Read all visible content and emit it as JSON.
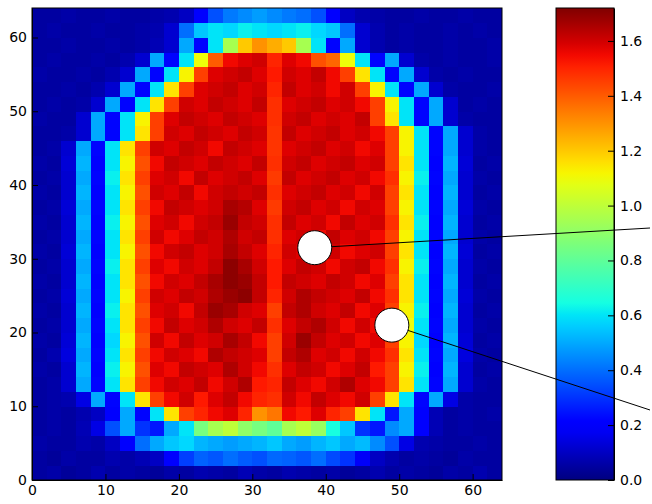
{
  "chart_data": {
    "type": "heatmap",
    "x": [
      1,
      3,
      5,
      7,
      9,
      11,
      13,
      15,
      17,
      19,
      21,
      23,
      25,
      27,
      29,
      31,
      33,
      35,
      37,
      39,
      41,
      43,
      45,
      47,
      49,
      51,
      53,
      55,
      57,
      59,
      61,
      63
    ],
    "y": [
      1,
      3,
      5,
      7,
      9,
      11,
      13,
      15,
      17,
      19,
      21,
      23,
      25,
      27,
      29,
      31,
      33,
      35,
      37,
      39,
      41,
      43,
      45,
      47,
      49,
      51,
      53,
      55,
      57,
      59,
      61,
      63
    ],
    "z": [
      [
        0.05,
        0.06,
        0.04,
        0.05,
        0.07,
        0.05,
        0.06,
        0.05,
        0.04,
        0.06,
        0.05,
        0.07,
        0.06,
        0.05,
        0.08,
        0.06,
        0.05,
        0.07,
        0.06,
        0.05,
        0.06,
        0.04,
        0.05,
        0.07,
        0.05,
        0.06,
        0.05,
        0.04,
        0.06,
        0.05,
        0.07,
        0.05
      ],
      [
        0.05,
        0.04,
        0.06,
        0.05,
        0.05,
        0.07,
        0.06,
        0.08,
        0.1,
        0.2,
        0.32,
        0.38,
        0.36,
        0.4,
        0.37,
        0.35,
        0.39,
        0.38,
        0.36,
        0.4,
        0.34,
        0.3,
        0.18,
        0.1,
        0.07,
        0.05,
        0.06,
        0.05,
        0.04,
        0.06,
        0.05,
        0.05
      ],
      [
        0.06,
        0.05,
        0.05,
        0.07,
        0.06,
        0.1,
        0.2,
        0.4,
        0.5,
        0.55,
        0.58,
        0.52,
        0.5,
        0.48,
        0.5,
        0.52,
        0.55,
        0.5,
        0.48,
        0.52,
        0.55,
        0.5,
        0.53,
        0.45,
        0.35,
        0.15,
        0.07,
        0.06,
        0.05,
        0.05,
        0.06,
        0.05
      ],
      [
        0.05,
        0.06,
        0.05,
        0.08,
        0.15,
        0.35,
        0.5,
        0.3,
        0.25,
        0.5,
        0.6,
        0.85,
        0.95,
        1.0,
        0.9,
        0.85,
        0.8,
        0.95,
        1.0,
        0.92,
        0.65,
        0.55,
        0.3,
        0.25,
        0.45,
        0.5,
        0.2,
        0.08,
        0.05,
        0.06,
        0.05,
        0.05
      ],
      [
        0.05,
        0.06,
        0.05,
        0.07,
        0.1,
        0.2,
        0.5,
        0.22,
        0.6,
        1.15,
        1.45,
        1.5,
        1.55,
        1.58,
        1.5,
        1.3,
        1.35,
        1.55,
        1.52,
        1.58,
        1.5,
        1.45,
        1.15,
        0.6,
        0.25,
        0.5,
        0.2,
        0.08,
        0.05,
        0.06,
        0.05,
        0.06
      ],
      [
        0.05,
        0.06,
        0.07,
        0.15,
        0.5,
        0.22,
        0.6,
        1.15,
        1.45,
        1.55,
        1.6,
        1.52,
        1.58,
        1.62,
        1.55,
        1.5,
        1.48,
        1.6,
        1.55,
        1.62,
        1.58,
        1.55,
        1.6,
        1.45,
        1.15,
        0.6,
        0.22,
        0.5,
        0.15,
        0.06,
        0.05,
        0.05
      ],
      [
        0.05,
        0.06,
        0.12,
        0.5,
        0.22,
        0.6,
        1.15,
        1.45,
        1.55,
        1.6,
        1.58,
        1.62,
        1.55,
        1.6,
        1.65,
        1.52,
        1.5,
        1.62,
        1.58,
        1.55,
        1.6,
        1.65,
        1.58,
        1.55,
        1.45,
        1.15,
        0.6,
        0.22,
        0.5,
        0.12,
        0.06,
        0.05
      ],
      [
        0.06,
        0.05,
        0.12,
        0.52,
        0.2,
        0.62,
        1.12,
        1.42,
        1.58,
        1.55,
        1.62,
        1.6,
        1.58,
        1.65,
        1.6,
        1.55,
        1.48,
        1.58,
        1.62,
        1.6,
        1.55,
        1.58,
        1.62,
        1.52,
        1.45,
        1.12,
        0.62,
        0.2,
        0.52,
        0.12,
        0.05,
        0.06
      ],
      [
        0.05,
        0.07,
        0.14,
        0.5,
        0.22,
        0.6,
        1.15,
        1.45,
        1.55,
        1.6,
        1.58,
        1.55,
        1.65,
        1.62,
        1.6,
        1.58,
        1.45,
        1.62,
        1.65,
        1.58,
        1.6,
        1.55,
        1.6,
        1.55,
        1.48,
        1.15,
        0.6,
        0.22,
        0.5,
        0.14,
        0.06,
        0.05
      ],
      [
        0.06,
        0.05,
        0.13,
        0.52,
        0.2,
        0.58,
        1.12,
        1.42,
        1.6,
        1.55,
        1.62,
        1.58,
        1.6,
        1.66,
        1.62,
        1.55,
        1.45,
        1.6,
        1.68,
        1.62,
        1.58,
        1.6,
        1.55,
        1.58,
        1.45,
        1.12,
        0.58,
        0.2,
        0.52,
        0.13,
        0.05,
        0.06
      ],
      [
        0.05,
        0.06,
        0.12,
        0.5,
        0.22,
        0.6,
        1.15,
        1.45,
        1.55,
        1.62,
        1.58,
        1.6,
        1.65,
        1.6,
        1.58,
        1.62,
        1.48,
        1.58,
        1.62,
        1.65,
        1.6,
        1.55,
        1.6,
        1.55,
        1.42,
        1.1,
        0.6,
        0.22,
        0.5,
        0.12,
        0.06,
        0.05
      ],
      [
        0.06,
        0.05,
        0.12,
        0.52,
        0.2,
        0.62,
        1.15,
        1.42,
        1.58,
        1.6,
        1.55,
        1.62,
        1.68,
        1.66,
        1.6,
        1.58,
        1.45,
        1.62,
        1.65,
        1.6,
        1.58,
        1.62,
        1.55,
        1.58,
        1.45,
        1.12,
        0.62,
        0.2,
        0.52,
        0.12,
        0.05,
        0.06
      ],
      [
        0.05,
        0.06,
        0.13,
        0.5,
        0.22,
        0.6,
        1.12,
        1.45,
        1.6,
        1.58,
        1.62,
        1.6,
        1.65,
        1.68,
        1.7,
        1.62,
        1.5,
        1.6,
        1.65,
        1.62,
        1.6,
        1.58,
        1.62,
        1.55,
        1.48,
        1.15,
        0.6,
        0.22,
        0.5,
        0.13,
        0.06,
        0.05
      ],
      [
        0.06,
        0.05,
        0.12,
        0.52,
        0.2,
        0.6,
        1.15,
        1.42,
        1.55,
        1.6,
        1.58,
        1.62,
        1.66,
        1.7,
        1.68,
        1.62,
        1.52,
        1.62,
        1.6,
        1.58,
        1.62,
        1.6,
        1.55,
        1.58,
        1.45,
        1.15,
        0.6,
        0.2,
        0.52,
        0.12,
        0.05,
        0.06
      ],
      [
        0.05,
        0.06,
        0.12,
        0.5,
        0.22,
        0.62,
        1.15,
        1.45,
        1.58,
        1.55,
        1.6,
        1.58,
        1.62,
        1.7,
        1.66,
        1.6,
        1.52,
        1.58,
        1.62,
        1.6,
        1.55,
        1.6,
        1.62,
        1.55,
        1.48,
        1.12,
        0.62,
        0.22,
        0.5,
        0.12,
        0.06,
        0.05
      ],
      [
        0.06,
        0.05,
        0.13,
        0.52,
        0.2,
        0.6,
        1.12,
        1.42,
        1.55,
        1.6,
        1.62,
        1.58,
        1.6,
        1.66,
        1.62,
        1.58,
        1.5,
        1.6,
        1.58,
        1.62,
        1.6,
        1.55,
        1.58,
        1.6,
        1.45,
        1.15,
        0.6,
        0.2,
        0.52,
        0.13,
        0.05,
        0.06
      ],
      [
        0.05,
        0.06,
        0.12,
        0.5,
        0.22,
        0.6,
        1.15,
        1.45,
        1.6,
        1.55,
        1.58,
        1.62,
        1.6,
        1.65,
        1.6,
        1.62,
        1.48,
        1.58,
        1.6,
        1.55,
        1.62,
        1.58,
        1.6,
        1.55,
        1.45,
        1.12,
        0.6,
        0.22,
        0.5,
        0.12,
        0.06,
        0.05
      ],
      [
        0.06,
        0.05,
        0.12,
        0.52,
        0.2,
        0.62,
        1.12,
        1.42,
        1.58,
        1.6,
        1.55,
        1.6,
        1.62,
        1.68,
        1.62,
        1.6,
        1.48,
        1.62,
        1.58,
        1.6,
        1.55,
        1.62,
        1.58,
        1.6,
        1.48,
        1.15,
        0.62,
        0.2,
        0.52,
        0.12,
        0.05,
        0.06
      ],
      [
        0.05,
        0.06,
        0.13,
        0.5,
        0.22,
        0.6,
        1.15,
        1.45,
        1.55,
        1.62,
        1.6,
        1.58,
        1.6,
        1.66,
        1.64,
        1.58,
        1.46,
        1.6,
        1.62,
        1.58,
        1.6,
        1.55,
        1.6,
        1.58,
        1.45,
        1.12,
        0.6,
        0.22,
        0.5,
        0.13,
        0.06,
        0.05
      ],
      [
        0.06,
        0.05,
        0.12,
        0.52,
        0.2,
        0.6,
        1.12,
        1.42,
        1.6,
        1.58,
        1.62,
        1.55,
        1.6,
        1.62,
        1.6,
        1.62,
        1.48,
        1.58,
        1.6,
        1.62,
        1.58,
        1.6,
        1.55,
        1.6,
        1.45,
        1.15,
        0.6,
        0.2,
        0.52,
        0.12,
        0.05,
        0.06
      ],
      [
        0.05,
        0.06,
        0.12,
        0.5,
        0.22,
        0.62,
        1.15,
        1.45,
        1.58,
        1.6,
        1.55,
        1.62,
        1.58,
        1.6,
        1.62,
        1.58,
        1.46,
        1.62,
        1.58,
        1.6,
        1.62,
        1.58,
        1.6,
        1.55,
        1.48,
        1.12,
        0.62,
        0.22,
        0.5,
        0.12,
        0.06,
        0.05
      ],
      [
        0.06,
        0.05,
        0.13,
        0.52,
        0.2,
        0.6,
        1.12,
        1.42,
        1.55,
        1.62,
        1.6,
        1.58,
        1.62,
        1.6,
        1.58,
        1.62,
        1.48,
        1.6,
        1.62,
        1.58,
        1.6,
        1.62,
        1.58,
        1.6,
        1.45,
        1.15,
        0.6,
        0.2,
        0.52,
        0.13,
        0.05,
        0.06
      ],
      [
        0.05,
        0.06,
        0.12,
        0.5,
        0.22,
        0.6,
        1.15,
        1.45,
        1.6,
        1.58,
        1.62,
        1.6,
        1.55,
        1.62,
        1.6,
        1.58,
        1.47,
        1.58,
        1.6,
        1.62,
        1.58,
        1.6,
        1.55,
        1.58,
        1.45,
        1.12,
        0.6,
        0.22,
        0.5,
        0.12,
        0.06,
        0.05
      ],
      [
        0.05,
        0.05,
        0.06,
        0.12,
        0.5,
        0.22,
        0.6,
        1.15,
        1.45,
        1.6,
        1.58,
        1.62,
        1.6,
        1.58,
        1.62,
        1.6,
        1.47,
        1.62,
        1.58,
        1.6,
        1.62,
        1.58,
        1.6,
        1.55,
        1.45,
        1.12,
        0.6,
        0.22,
        0.5,
        0.12,
        0.06,
        0.05
      ],
      [
        0.06,
        0.05,
        0.05,
        0.12,
        0.5,
        0.22,
        0.6,
        1.12,
        1.45,
        1.58,
        1.62,
        1.6,
        1.58,
        1.62,
        1.6,
        1.58,
        1.48,
        1.6,
        1.62,
        1.58,
        1.6,
        1.58,
        1.62,
        1.45,
        1.15,
        0.6,
        0.22,
        0.5,
        0.12,
        0.06,
        0.05,
        0.05
      ],
      [
        0.05,
        0.06,
        0.05,
        0.06,
        0.12,
        0.5,
        0.22,
        0.6,
        1.15,
        1.45,
        1.6,
        1.58,
        1.62,
        1.6,
        1.58,
        1.62,
        1.48,
        1.58,
        1.6,
        1.62,
        1.58,
        1.6,
        1.55,
        1.45,
        1.12,
        0.6,
        0.22,
        0.5,
        0.12,
        0.05,
        0.06,
        0.05
      ],
      [
        0.05,
        0.05,
        0.06,
        0.05,
        0.07,
        0.12,
        0.5,
        0.22,
        0.6,
        1.15,
        1.45,
        1.58,
        1.6,
        1.62,
        1.58,
        1.6,
        1.5,
        1.62,
        1.58,
        1.6,
        1.55,
        1.6,
        1.45,
        1.12,
        0.6,
        0.22,
        0.5,
        0.12,
        0.06,
        0.05,
        0.05,
        0.06
      ],
      [
        0.06,
        0.05,
        0.05,
        0.06,
        0.05,
        0.07,
        0.12,
        0.5,
        0.22,
        0.6,
        1.12,
        1.45,
        1.58,
        1.6,
        1.62,
        1.58,
        1.52,
        1.6,
        1.58,
        1.62,
        1.55,
        1.45,
        1.15,
        0.6,
        0.22,
        0.5,
        0.12,
        0.06,
        0.05,
        0.06,
        0.05,
        0.05
      ],
      [
        0.05,
        0.06,
        0.05,
        0.05,
        0.06,
        0.05,
        0.07,
        0.12,
        0.5,
        0.22,
        0.6,
        1.1,
        1.4,
        1.55,
        1.58,
        1.6,
        1.5,
        1.58,
        1.55,
        1.42,
        1.38,
        1.1,
        0.6,
        0.22,
        0.5,
        0.12,
        0.06,
        0.05,
        0.06,
        0.05,
        0.05,
        0.06
      ],
      [
        0.05,
        0.05,
        0.06,
        0.05,
        0.05,
        0.06,
        0.05,
        0.06,
        0.08,
        0.12,
        0.5,
        0.22,
        0.6,
        0.95,
        1.2,
        1.3,
        1.25,
        1.2,
        0.95,
        0.6,
        0.22,
        0.5,
        0.12,
        0.07,
        0.05,
        0.06,
        0.05,
        0.05,
        0.06,
        0.05,
        0.05,
        0.06
      ],
      [
        0.05,
        0.06,
        0.05,
        0.05,
        0.06,
        0.05,
        0.05,
        0.06,
        0.07,
        0.12,
        0.4,
        0.55,
        0.6,
        0.58,
        0.62,
        0.6,
        0.58,
        0.6,
        0.62,
        0.58,
        0.55,
        0.4,
        0.12,
        0.07,
        0.05,
        0.06,
        0.05,
        0.05,
        0.06,
        0.05,
        0.06,
        0.05
      ],
      [
        0.05,
        0.05,
        0.06,
        0.05,
        0.05,
        0.06,
        0.05,
        0.05,
        0.06,
        0.07,
        0.1,
        0.2,
        0.35,
        0.42,
        0.45,
        0.48,
        0.45,
        0.42,
        0.4,
        0.35,
        0.2,
        0.1,
        0.07,
        0.06,
        0.05,
        0.05,
        0.06,
        0.05,
        0.05,
        0.06,
        0.05,
        0.05
      ]
    ],
    "xlim": [
      0,
      64
    ],
    "ylim": [
      0,
      64
    ],
    "xticks": [
      0,
      10,
      20,
      30,
      40,
      50,
      60
    ],
    "yticks": [
      0,
      10,
      20,
      30,
      40,
      50,
      60
    ],
    "colorbar": {
      "range": [
        0,
        1.72
      ],
      "ticks": [
        {
          "value": 0,
          "label": "0.0"
        },
        {
          "value": 0.2,
          "label": "0.2"
        },
        {
          "value": 0.4,
          "label": "0.4"
        },
        {
          "value": 0.6,
          "label": "0.6"
        },
        {
          "value": 0.8,
          "label": "0.8"
        },
        {
          "value": 1,
          "label": "1.0"
        },
        {
          "value": 1.2,
          "label": "1.2"
        },
        {
          "value": 1.4,
          "label": "1.4"
        },
        {
          "value": 1.6,
          "label": "1.6"
        }
      ]
    },
    "markers": {
      "x": [
        38.5,
        49
      ],
      "y": [
        31.5,
        21
      ]
    }
  }
}
